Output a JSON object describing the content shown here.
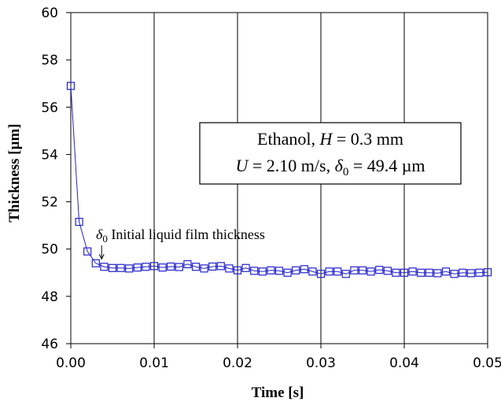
{
  "chart_data": {
    "type": "scatter",
    "xlabel": "Time [s]",
    "ylabel": "Thickness [µm]",
    "xlim": [
      0,
      0.05
    ],
    "ylim": [
      46,
      60
    ],
    "x_ticks": [
      "0.00",
      "0.01",
      "0.02",
      "0.03",
      "0.04",
      "0.05"
    ],
    "y_ticks": [
      "46",
      "48",
      "50",
      "52",
      "54",
      "56",
      "58",
      "60"
    ],
    "grid": "vertical",
    "legend": "none",
    "series": [
      {
        "marker": "open-square",
        "line": "solid",
        "color": "#2222cc",
        "x": [
          0.0,
          0.001,
          0.002,
          0.003,
          0.004,
          0.005,
          0.006,
          0.007,
          0.008,
          0.009,
          0.01,
          0.011,
          0.012,
          0.013,
          0.014,
          0.015,
          0.016,
          0.017,
          0.018,
          0.019,
          0.02,
          0.021,
          0.022,
          0.023,
          0.024,
          0.025,
          0.026,
          0.027,
          0.028,
          0.029,
          0.03,
          0.031,
          0.032,
          0.033,
          0.034,
          0.035,
          0.036,
          0.037,
          0.038,
          0.039,
          0.04,
          0.041,
          0.042,
          0.043,
          0.044,
          0.045,
          0.046,
          0.047,
          0.048,
          0.049,
          0.05
        ],
        "y": [
          56.9,
          51.15,
          49.9,
          49.4,
          49.25,
          49.2,
          49.2,
          49.18,
          49.22,
          49.25,
          49.28,
          49.22,
          49.26,
          49.24,
          49.36,
          49.25,
          49.18,
          49.26,
          49.28,
          49.18,
          49.1,
          49.2,
          49.08,
          49.05,
          49.1,
          49.08,
          49.0,
          49.1,
          49.15,
          49.05,
          48.95,
          49.05,
          49.05,
          48.95,
          49.1,
          49.1,
          49.05,
          49.12,
          49.08,
          49.0,
          49.0,
          49.05,
          49.0,
          49.0,
          48.98,
          49.05,
          48.95,
          49.0,
          48.98,
          49.0,
          49.02
        ]
      }
    ],
    "annotations": {
      "box_line1_prefix": "Ethanol, ",
      "box_line1_var": "H",
      "box_line1_suffix": " = 0.3 mm",
      "box_line2_var1": "U",
      "box_line2_mid": " = 2.10 m/s, ",
      "box_line2_var2": "δ",
      "box_line2_sub": "0",
      "box_line2_suffix": " = 49.4 µm",
      "arrow_label_symbol": "δ",
      "arrow_label_sub": "0",
      "arrow_label_text": " Initial liquid film thickness",
      "arrow_target_x": 0.0037,
      "arrow_target_y": 49.35
    }
  }
}
